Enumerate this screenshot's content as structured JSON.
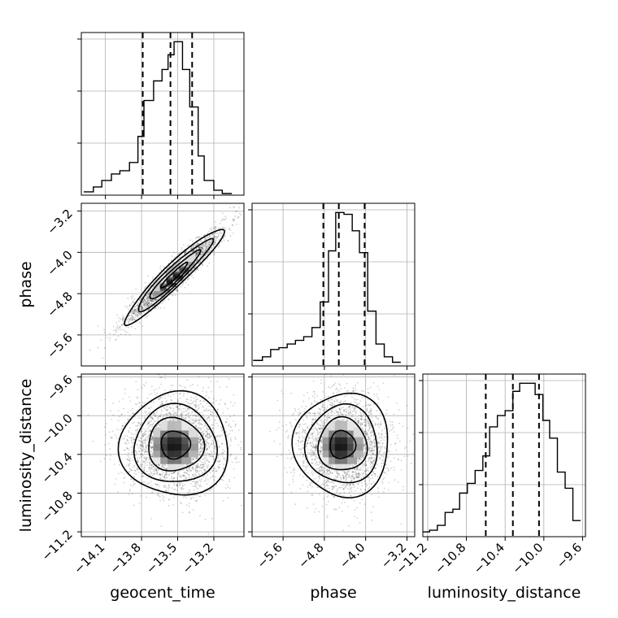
{
  "chart_data": {
    "type": "corner",
    "parameters": [
      {
        "name": "geocent_time",
        "label": "geocent_time",
        "range": [
          -14.3,
          -12.95
        ],
        "ticks": [
          -14.1,
          -13.8,
          -13.5,
          -13.2
        ],
        "tick_labels": [
          "−14.1",
          "−13.8",
          "−13.5",
          "−13.2"
        ],
        "quantiles": [
          -13.79,
          -13.56,
          -13.38
        ]
      },
      {
        "name": "phase",
        "label": "phase",
        "range": [
          -6.2,
          -3.05
        ],
        "ticks": [
          -5.6,
          -4.8,
          -4.0,
          -3.2
        ],
        "tick_labels": [
          "−5.6",
          "−4.8",
          "−4.0",
          "−3.2"
        ],
        "quantiles": [
          -4.82,
          -4.52,
          -4.02
        ]
      },
      {
        "name": "luminosity_distance",
        "label": "luminosity_distance",
        "range": [
          -11.25,
          -9.57
        ],
        "ticks": [
          -11.2,
          -10.8,
          -10.4,
          -10.0,
          -9.6
        ],
        "tick_labels": [
          "−11.2",
          "−10.8",
          "−10.4",
          "−10.0",
          "−9.6"
        ],
        "quantiles": [
          -10.6,
          -10.32,
          -10.05
        ]
      }
    ],
    "histograms": [
      {
        "param": "geocent_time",
        "bin_edges": [
          -14.28,
          -14.2,
          -14.13,
          -14.05,
          -13.98,
          -13.9,
          -13.83,
          -13.78,
          -13.7,
          -13.63,
          -13.58,
          -13.53,
          -13.46,
          -13.4,
          -13.33,
          -13.28,
          -13.2,
          -13.13,
          -13.05
        ],
        "counts": [
          2,
          5,
          9,
          13,
          15,
          20,
          36,
          58,
          70,
          77,
          86,
          94,
          77,
          54,
          24,
          9,
          3,
          1
        ]
      },
      {
        "param": "phase",
        "bin_edges": [
          -6.18,
          -6.0,
          -5.84,
          -5.68,
          -5.52,
          -5.36,
          -5.2,
          -5.04,
          -4.88,
          -4.72,
          -4.58,
          -4.42,
          -4.26,
          -4.12,
          -3.96,
          -3.8,
          -3.64,
          -3.48,
          -3.32
        ],
        "counts": [
          3,
          5,
          9,
          10,
          12,
          14,
          16,
          21,
          35,
          63,
          84,
          83,
          74,
          62,
          30,
          12,
          5,
          2
        ]
      },
      {
        "param": "luminosity_distance",
        "bin_edges": [
          -11.25,
          -11.18,
          -11.1,
          -11.02,
          -10.94,
          -10.87,
          -10.79,
          -10.71,
          -10.63,
          -10.56,
          -10.48,
          -10.4,
          -10.32,
          -10.25,
          -10.17,
          -10.09,
          -10.01,
          -9.94,
          -9.86,
          -9.78,
          -9.7,
          -9.62
        ],
        "counts": [
          3,
          4,
          7,
          15,
          17,
          27,
          33,
          41,
          50,
          68,
          75,
          78,
          90,
          95,
          95,
          88,
          72,
          61,
          40,
          30,
          10
        ]
      }
    ],
    "pairs": [
      {
        "x": "geocent_time",
        "y": "phase",
        "correlation": 0.95,
        "center": [
          -13.53,
          -4.45
        ],
        "sd": [
          0.2,
          0.45
        ]
      },
      {
        "x": "geocent_time",
        "y": "luminosity_distance",
        "correlation": 0.0,
        "center": [
          -13.52,
          -10.3
        ],
        "sd": [
          0.22,
          0.26
        ]
      },
      {
        "x": "phase",
        "y": "luminosity_distance",
        "correlation": 0.0,
        "center": [
          -4.45,
          -10.3
        ],
        "sd": [
          0.45,
          0.26
        ]
      }
    ],
    "quantile_line_style": "dashed",
    "grid": true
  }
}
